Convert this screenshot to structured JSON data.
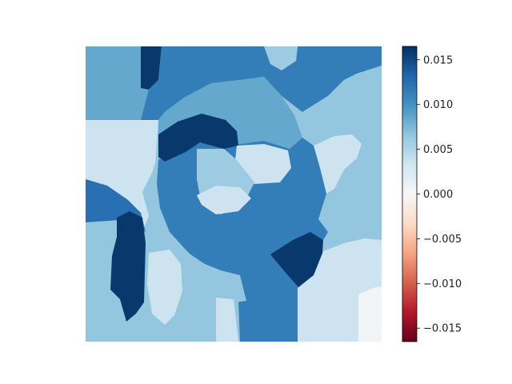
{
  "chart_data": {
    "type": "heatmap",
    "title": "",
    "xlabel": "",
    "ylabel": "",
    "colormap": "RdBu",
    "colorbar": {
      "range": [
        -0.0165,
        0.0165
      ],
      "ticks": [
        {
          "value": 0.015,
          "label": "0.015"
        },
        {
          "value": 0.01,
          "label": "0.010"
        },
        {
          "value": 0.005,
          "label": "0.005"
        },
        {
          "value": 0.0,
          "label": "0.000"
        },
        {
          "value": -0.005,
          "label": "−0.005"
        },
        {
          "value": -0.01,
          "label": "−0.010"
        },
        {
          "value": -0.015,
          "label": "−0.015"
        }
      ]
    },
    "regions": [
      {
        "id": "background-light",
        "value": 0.0065
      },
      {
        "id": "top-left-medium",
        "value": 0.0085
      },
      {
        "id": "top-stripe-dark",
        "value": 0.016
      },
      {
        "id": "top-band",
        "value": 0.0115
      },
      {
        "id": "top-right-light",
        "value": 0.0065
      },
      {
        "id": "top-center-light",
        "value": 0.006
      },
      {
        "id": "right-light",
        "value": 0.0055
      },
      {
        "id": "right-pale",
        "value": 0.0035
      },
      {
        "id": "left-pale",
        "value": 0.0035
      },
      {
        "id": "center-ring",
        "value": 0.0115
      },
      {
        "id": "eye-dark",
        "value": 0.016
      },
      {
        "id": "face-medium",
        "value": 0.0085
      },
      {
        "id": "inner-pale",
        "value": 0.0035
      },
      {
        "id": "nose-light",
        "value": 0.006
      },
      {
        "id": "left-blob",
        "value": 0.0125
      },
      {
        "id": "left-dark",
        "value": 0.016
      },
      {
        "id": "right-dark",
        "value": 0.016
      },
      {
        "id": "lower-light",
        "value": 0.0065
      },
      {
        "id": "bottom-stripe-light",
        "value": 0.0065
      },
      {
        "id": "bottom-pale",
        "value": 0.0035
      },
      {
        "id": "corner-white",
        "value": 0.0005
      }
    ]
  }
}
